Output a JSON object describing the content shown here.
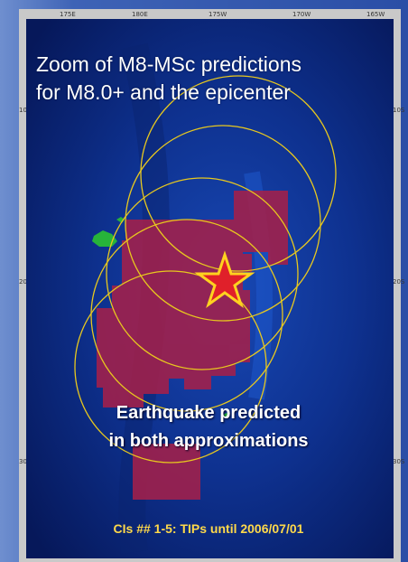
{
  "map": {
    "title_line1": "Zoom of M8-MSc predictions",
    "title_line2": "for M8.0+ and the epicenter",
    "top_ticks": [
      "175E",
      "180E",
      "175W",
      "170W",
      "165W"
    ],
    "left_ticks": [
      "10S",
      "20S",
      "30S"
    ],
    "right_ticks": [
      "10S",
      "20S",
      "30S"
    ],
    "predicted_line1": "Earthquake predicted",
    "predicted_line2": "in both approximations",
    "footer": "CIs ## 1-5: TIPs until 2006/07/01",
    "colors": {
      "ocean": "#0b2a80",
      "alarm_area": "#a4204a",
      "circle": "#e8c81e",
      "star_fill": "#e0202a",
      "star_outline": "#ffd21f",
      "frame": "#c9c9c9"
    },
    "epicenter_icon": "star-icon"
  }
}
